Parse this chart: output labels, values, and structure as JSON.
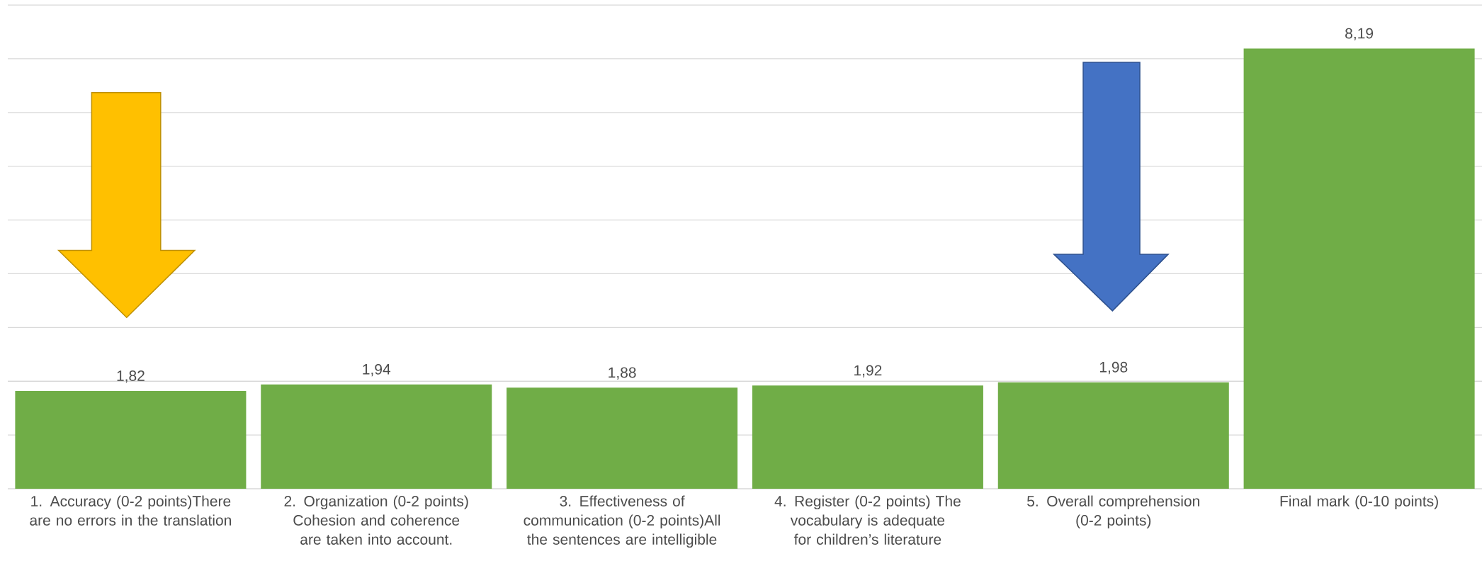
{
  "chart_data": {
    "type": "bar",
    "categories": [
      "1. Accuracy (0-2 points)There are no errors in the translation",
      "2. Organization (0-2 points) Cohesion and coherence are taken into account.",
      "3. Effectiveness of communication (0-2 points)All the sentences are intelligible",
      "4. Register (0-2 points) The vocabulary is adequate for children’s literature",
      "5. Overall comprehension (0-2 points)",
      "Final mark (0-10 points)"
    ],
    "values": [
      1.82,
      1.94,
      1.88,
      1.92,
      1.98,
      8.19
    ],
    "value_labels": [
      "1,82",
      "1,94",
      "1,88",
      "1,92",
      "1,98",
      "8,19"
    ],
    "color": "#70ad47",
    "grid": "y",
    "tick_labels": "x"
  }
}
